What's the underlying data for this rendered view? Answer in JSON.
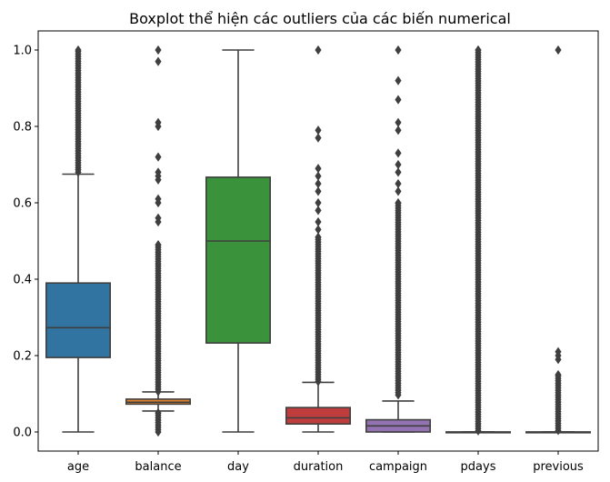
{
  "chart_data": {
    "type": "boxplot",
    "title": "Boxplot thể hiện các outliers của các biến numerical",
    "xlabel": "",
    "ylabel": "",
    "ylim": [
      -0.05,
      1.05
    ],
    "yticks": [
      0.0,
      0.2,
      0.4,
      0.6,
      0.8,
      1.0
    ],
    "ytick_labels": [
      "0.0",
      "0.2",
      "0.4",
      "0.6",
      "0.8",
      "1.0"
    ],
    "grid": false,
    "categories": [
      "age",
      "balance",
      "day",
      "duration",
      "campaign",
      "pdays",
      "previous"
    ],
    "boxes": [
      {
        "category": "age",
        "color": "#3274a1",
        "whisker_low": 0.0,
        "q1": 0.195,
        "median": 0.273,
        "q3": 0.39,
        "whisker_high": 0.675,
        "outliers_range": [
          0.68,
          1.0
        ],
        "outliers": []
      },
      {
        "category": "balance",
        "color": "#e1812c",
        "whisker_low": 0.055,
        "q1": 0.073,
        "median": 0.078,
        "q3": 0.086,
        "whisker_high": 0.105,
        "outliers_range_low": [
          0.0,
          0.05
        ],
        "outliers_range": [
          0.106,
          0.49
        ],
        "outliers": [
          0.55,
          0.56,
          0.6,
          0.61,
          0.66,
          0.67,
          0.68,
          0.72,
          0.8,
          0.81,
          0.97,
          1.0
        ]
      },
      {
        "category": "day",
        "color": "#3a923a",
        "whisker_low": 0.0,
        "q1": 0.233,
        "median": 0.5,
        "q3": 0.667,
        "whisker_high": 1.0,
        "outliers": []
      },
      {
        "category": "duration",
        "color": "#c03d3e",
        "whisker_low": 0.0,
        "q1": 0.021,
        "median": 0.037,
        "q3": 0.064,
        "whisker_high": 0.13,
        "outliers_range": [
          0.132,
          0.51
        ],
        "outliers": [
          0.53,
          0.55,
          0.58,
          0.6,
          0.63,
          0.65,
          0.67,
          0.69,
          0.77,
          0.79,
          1.0
        ]
      },
      {
        "category": "campaign",
        "color": "#9372b2",
        "whisker_low": 0.0,
        "q1": 0.0,
        "median": 0.016,
        "q3": 0.032,
        "whisker_high": 0.081,
        "outliers_range": [
          0.097,
          0.6
        ],
        "outliers": [
          0.63,
          0.65,
          0.68,
          0.7,
          0.73,
          0.79,
          0.81,
          0.87,
          0.92,
          1.0
        ]
      },
      {
        "category": "pdays",
        "color": "#845b53",
        "whisker_low": 0.0,
        "q1": 0.0,
        "median": 0.0,
        "q3": 0.0,
        "whisker_high": 0.0,
        "outliers_range": [
          0.003,
          1.0
        ],
        "outliers": []
      },
      {
        "category": "previous",
        "color": "#d684bd",
        "whisker_low": 0.0,
        "q1": 0.0,
        "median": 0.0,
        "q3": 0.0,
        "whisker_high": 0.0,
        "outliers_range": [
          0.004,
          0.15
        ],
        "outliers": [
          0.19,
          0.2,
          0.21,
          1.0
        ]
      }
    ]
  }
}
